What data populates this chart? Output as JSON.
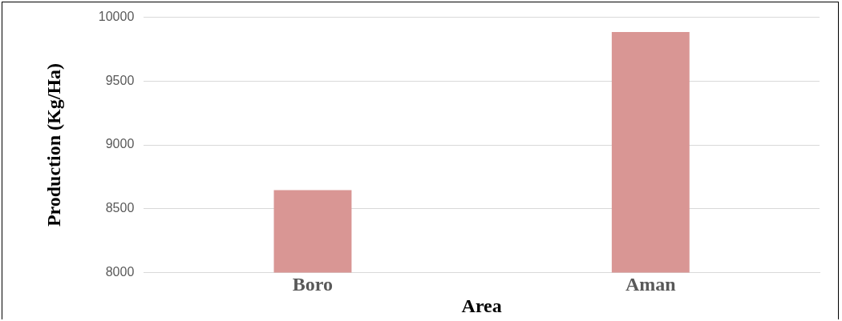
{
  "chart_data": {
    "type": "bar",
    "xlabel": "Area",
    "ylabel": "Production (Kg/Ha)",
    "categories": [
      "Boro",
      "Aman"
    ],
    "values": [
      8645,
      9885
    ],
    "color": "#d99694",
    "ylim": [
      8000,
      10000
    ],
    "yticks": [
      8000,
      8500,
      9000,
      9500,
      10000
    ],
    "grid": "y",
    "legend": false
  }
}
